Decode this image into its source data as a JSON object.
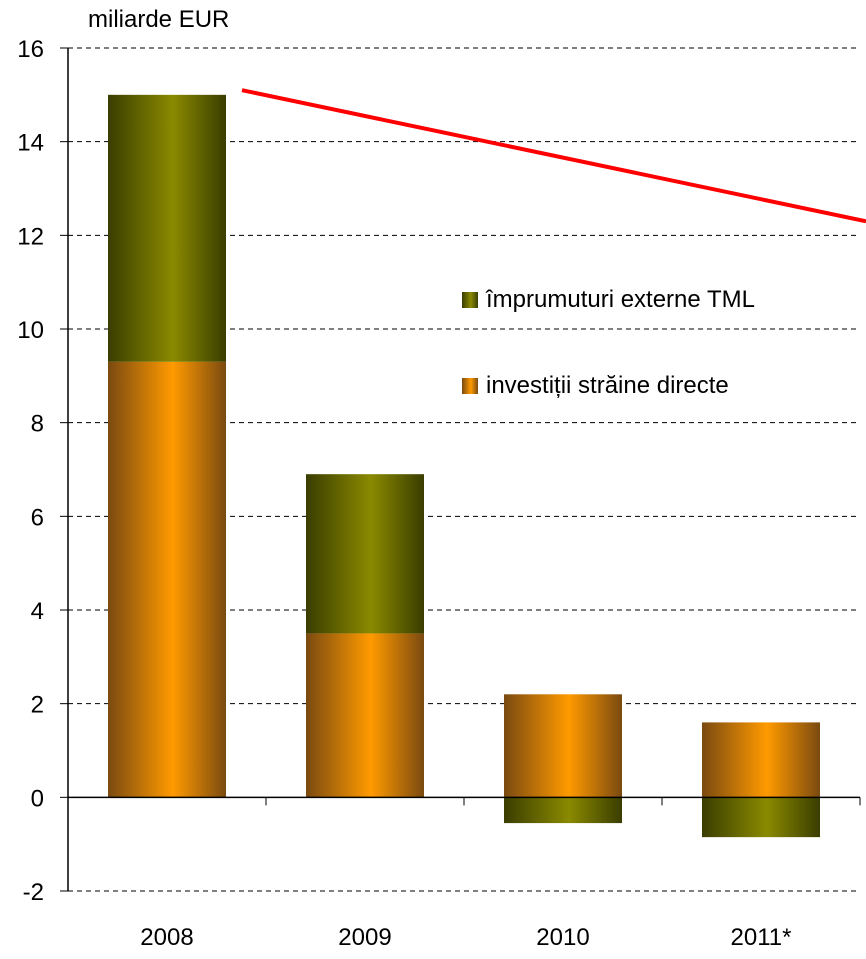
{
  "unit_label": "miliarde EUR",
  "legend": [
    {
      "label": "împrumuturi externe TML",
      "series": "loans"
    },
    {
      "label": "investiții străine directe",
      "series": "fdi"
    }
  ],
  "colors": {
    "fdi_center": "#ff9a00",
    "fdi_edge": "#7a4a10",
    "loans_center": "#8a8a00",
    "loans_edge": "#3a3d00",
    "trend": "#ff0000",
    "grid": "#000000"
  },
  "chart_data": {
    "type": "bar",
    "stacked": true,
    "categories": [
      "2008",
      "2009",
      "2010",
      "2011*"
    ],
    "series": [
      {
        "name": "investiții străine directe",
        "key": "fdi",
        "values": [
          9.3,
          3.5,
          2.2,
          1.6
        ]
      },
      {
        "name": "împrumuturi externe TML",
        "key": "loans",
        "values": [
          5.7,
          3.4,
          -0.55,
          -0.85
        ]
      }
    ],
    "trend_line": {
      "from": {
        "category": "2008",
        "value": 15.1
      },
      "to_value_at_right_edge": 12.3
    },
    "ylabel": "miliarde EUR",
    "ylim": [
      -2,
      16
    ],
    "yticks": [
      -2,
      0,
      2,
      4,
      6,
      8,
      10,
      12,
      14,
      16
    ],
    "grid": "dashed horizontal",
    "legend_position": "right-middle"
  }
}
